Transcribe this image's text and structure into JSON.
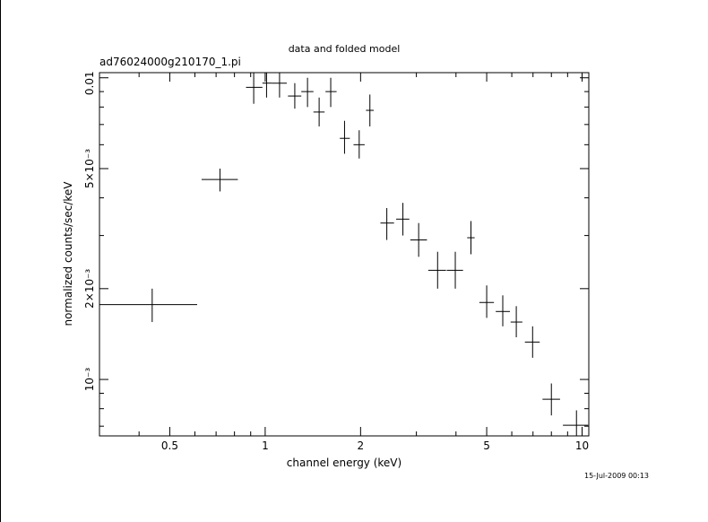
{
  "chart_data": {
    "type": "scatter",
    "title": "data and folded model",
    "subtitle": "ad76024000g210170_1.pi",
    "xlabel": "channel energy (keV)",
    "ylabel": "normalized counts/sec/keV",
    "x_scale": "log",
    "y_scale": "log",
    "xlim": [
      0.3,
      10.5
    ],
    "ylim": [
      0.00065,
      0.0104
    ],
    "x_ticks": [
      {
        "value": 0.5,
        "label": "0.5"
      },
      {
        "value": 1,
        "label": "1"
      },
      {
        "value": 2,
        "label": "2"
      },
      {
        "value": 5,
        "label": "5"
      },
      {
        "value": 10,
        "label": "10"
      }
    ],
    "y_ticks": [
      {
        "value": 0.001,
        "label": "10⁻³"
      },
      {
        "value": 0.002,
        "label": "2×10⁻³"
      },
      {
        "value": 0.005,
        "label": "5×10⁻³"
      },
      {
        "value": 0.01,
        "label": "0.01"
      }
    ],
    "grid": false,
    "points": [
      {
        "x": 0.44,
        "xlo": 0.3,
        "xhi": 0.61,
        "y": 0.00177,
        "ylo": 0.00155,
        "yhi": 0.002
      },
      {
        "x": 0.72,
        "xlo": 0.63,
        "xhi": 0.82,
        "y": 0.0046,
        "ylo": 0.0042,
        "yhi": 0.005
      },
      {
        "x": 0.92,
        "xlo": 0.87,
        "xhi": 0.98,
        "y": 0.0093,
        "ylo": 0.0082,
        "yhi": 0.0104
      },
      {
        "x": 1.01,
        "xlo": 0.98,
        "xhi": 1.05,
        "y": 0.0096,
        "ylo": 0.0086,
        "yhi": 0.0104
      },
      {
        "x": 1.11,
        "xlo": 1.05,
        "xhi": 1.17,
        "y": 0.0096,
        "ylo": 0.0086,
        "yhi": 0.0104
      },
      {
        "x": 1.24,
        "xlo": 1.18,
        "xhi": 1.3,
        "y": 0.0087,
        "ylo": 0.0079,
        "yhi": 0.0096
      },
      {
        "x": 1.36,
        "xlo": 1.3,
        "xhi": 1.42,
        "y": 0.009,
        "ylo": 0.008,
        "yhi": 0.01
      },
      {
        "x": 1.48,
        "xlo": 1.42,
        "xhi": 1.54,
        "y": 0.0077,
        "ylo": 0.0069,
        "yhi": 0.0086
      },
      {
        "x": 1.61,
        "xlo": 1.55,
        "xhi": 1.68,
        "y": 0.009,
        "ylo": 0.008,
        "yhi": 0.01
      },
      {
        "x": 1.78,
        "xlo": 1.72,
        "xhi": 1.85,
        "y": 0.0063,
        "ylo": 0.0056,
        "yhi": 0.0072
      },
      {
        "x": 1.98,
        "xlo": 1.9,
        "xhi": 2.06,
        "y": 0.006,
        "ylo": 0.0054,
        "yhi": 0.0067
      },
      {
        "x": 2.14,
        "xlo": 2.08,
        "xhi": 2.2,
        "y": 0.0078,
        "ylo": 0.0069,
        "yhi": 0.0088
      },
      {
        "x": 2.42,
        "xlo": 2.31,
        "xhi": 2.55,
        "y": 0.0033,
        "ylo": 0.0029,
        "yhi": 0.0037
      },
      {
        "x": 2.72,
        "xlo": 2.59,
        "xhi": 2.85,
        "y": 0.0034,
        "ylo": 0.003,
        "yhi": 0.00385
      },
      {
        "x": 3.05,
        "xlo": 2.87,
        "xhi": 3.24,
        "y": 0.0029,
        "ylo": 0.00255,
        "yhi": 0.0033
      },
      {
        "x": 3.5,
        "xlo": 3.27,
        "xhi": 3.72,
        "y": 0.0023,
        "ylo": 0.002,
        "yhi": 0.00265
      },
      {
        "x": 3.98,
        "xlo": 3.74,
        "xhi": 4.21,
        "y": 0.0023,
        "ylo": 0.002,
        "yhi": 0.00265
      },
      {
        "x": 4.46,
        "xlo": 4.34,
        "xhi": 4.58,
        "y": 0.00295,
        "ylo": 0.0026,
        "yhi": 0.00335
      },
      {
        "x": 5.0,
        "xlo": 4.74,
        "xhi": 5.27,
        "y": 0.0018,
        "ylo": 0.0016,
        "yhi": 0.00205
      },
      {
        "x": 5.62,
        "xlo": 5.34,
        "xhi": 5.92,
        "y": 0.00168,
        "ylo": 0.0015,
        "yhi": 0.0019
      },
      {
        "x": 6.2,
        "xlo": 5.95,
        "xhi": 6.48,
        "y": 0.00155,
        "ylo": 0.00138,
        "yhi": 0.00175
      },
      {
        "x": 6.98,
        "xlo": 6.6,
        "xhi": 7.35,
        "y": 0.00133,
        "ylo": 0.00118,
        "yhi": 0.0015
      },
      {
        "x": 8.0,
        "xlo": 7.5,
        "xhi": 8.52,
        "y": 0.00086,
        "ylo": 0.00076,
        "yhi": 0.00097
      },
      {
        "x": 9.6,
        "xlo": 8.7,
        "xhi": 10.45,
        "y": 0.000705,
        "ylo": 0.00065,
        "yhi": 0.00079
      }
    ]
  },
  "footer": {
    "timestamp": "15-Jul-2009 00:13"
  }
}
